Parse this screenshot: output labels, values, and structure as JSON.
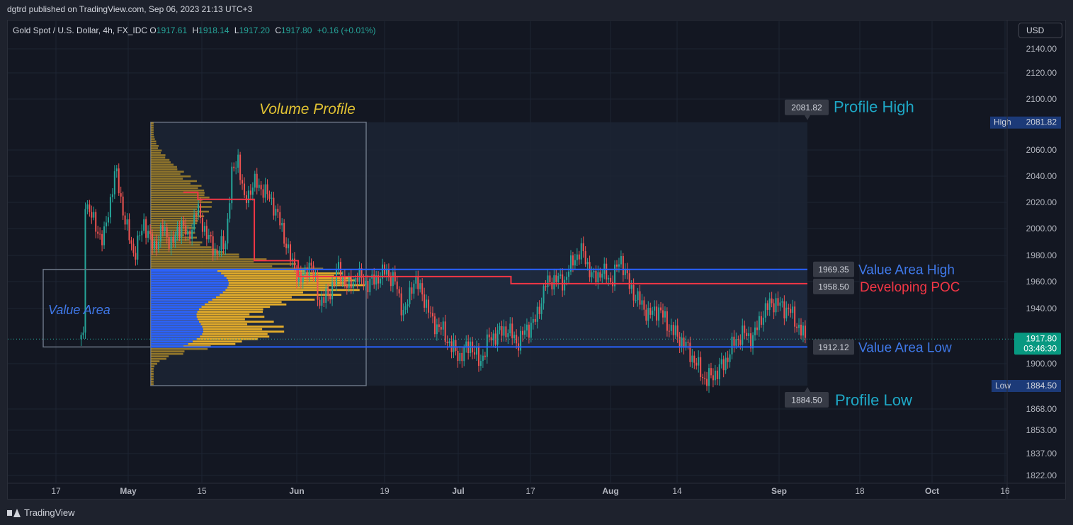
{
  "header": {
    "published": "dgtrd published on TradingView.com, Sep 06, 2023 21:13 UTC+3"
  },
  "legend": {
    "symbol": "Gold Spot / U.S. Dollar, 4h, FX_IDC",
    "o_label": "O",
    "o": "1917.61",
    "h_label": "H",
    "h": "1918.14",
    "l_label": "L",
    "l": "1917.20",
    "c_label": "C",
    "c": "1917.80",
    "change": "+0.16 (+0.01%)"
  },
  "currency": "USD",
  "footer": {
    "brand": "TradingView"
  },
  "colors": {
    "up": "#26a69a",
    "down": "#ef5350",
    "value_area": "#2962ff",
    "poc": "#f23645",
    "profile_in": "#2962ff",
    "profile_out": "#f0b429",
    "accent_text": "#1ea7c5",
    "label_yellow": "#e1c233"
  },
  "chart_data": {
    "type": "candlestick",
    "title": "",
    "y_ticks": [
      "2140.00",
      "2120.00",
      "2100.00",
      "2060.00",
      "2040.00",
      "2020.00",
      "2000.00",
      "1980.00",
      "1960.00",
      "1940.00",
      "1900.00",
      "1868.00",
      "1853.00",
      "1837.00",
      "1822.00"
    ],
    "x_ticks": [
      "17",
      "May",
      "15",
      "Jun",
      "19",
      "Jul",
      "17",
      "Aug",
      "14",
      "Sep",
      "18",
      "Oct",
      "16"
    ],
    "levels": {
      "profile_high": 2081.82,
      "profile_low": 1884.5,
      "value_area_high": 1969.35,
      "developing_poc": 1958.5,
      "value_area_low": 1912.12,
      "last_price": 1917.8
    },
    "level_labels": {
      "profile_high": "2081.82",
      "profile_low": "1884.50",
      "value_area_high": "1969.35",
      "developing_poc": "1958.50",
      "value_area_low": "1912.12"
    },
    "annotations": {
      "volume_profile": "Volume Profile",
      "value_area": "Value Area",
      "profile_high": "Profile High",
      "profile_low": "Profile Low",
      "value_area_high": "Value Area High",
      "developing_poc": "Developing POC",
      "value_area_low": "Value Area Low"
    },
    "scale_tags": {
      "high_label": "High",
      "high_value": "2081.82",
      "low_label": "Low",
      "low_value": "1884.50",
      "last_value": "1917.80",
      "countdown": "03:46:30"
    },
    "price_path": [
      {
        "d": -14,
        "p": 2024
      },
      {
        "d": -11,
        "p": 2005
      },
      {
        "d": -8,
        "p": 1990
      },
      {
        "d": -4,
        "p": 2045
      },
      {
        "d": -1,
        "p": 2005
      },
      {
        "d": 2,
        "p": 1980
      },
      {
        "d": 5,
        "p": 2005
      },
      {
        "d": 8,
        "p": 1985
      },
      {
        "d": 11,
        "p": 2000
      },
      {
        "d": 14,
        "p": 1988
      },
      {
        "d": 17,
        "p": 2005
      },
      {
        "d": 19,
        "p": 1992
      },
      {
        "d": 22,
        "p": 2015
      },
      {
        "d": 25,
        "p": 1995
      },
      {
        "d": 28,
        "p": 1982
      },
      {
        "d": 31,
        "p": 1990
      },
      {
        "d": 33,
        "p": 2040
      },
      {
        "d": 35,
        "p": 2055
      },
      {
        "d": 37,
        "p": 2020
      },
      {
        "d": 40,
        "p": 2035
      },
      {
        "d": 43,
        "p": 2030
      },
      {
        "d": 46,
        "p": 2020
      },
      {
        "d": 49,
        "p": 2000
      },
      {
        "d": 52,
        "p": 1975
      },
      {
        "d": 55,
        "p": 1960
      },
      {
        "d": 58,
        "p": 1975
      },
      {
        "d": 61,
        "p": 1945
      },
      {
        "d": 64,
        "p": 1950
      },
      {
        "d": 67,
        "p": 1970
      },
      {
        "d": 70,
        "p": 1955
      },
      {
        "d": 73,
        "p": 1965
      },
      {
        "d": 76,
        "p": 1958
      },
      {
        "d": 79,
        "p": 1962
      },
      {
        "d": 82,
        "p": 1968
      },
      {
        "d": 85,
        "p": 1960
      },
      {
        "d": 88,
        "p": 1935
      },
      {
        "d": 91,
        "p": 1962
      },
      {
        "d": 94,
        "p": 1950
      },
      {
        "d": 97,
        "p": 1930
      },
      {
        "d": 100,
        "p": 1925
      },
      {
        "d": 103,
        "p": 1912
      },
      {
        "d": 106,
        "p": 1905
      },
      {
        "d": 109,
        "p": 1915
      },
      {
        "d": 112,
        "p": 1900
      },
      {
        "d": 115,
        "p": 1918
      },
      {
        "d": 118,
        "p": 1922
      },
      {
        "d": 121,
        "p": 1925
      },
      {
        "d": 124,
        "p": 1915
      },
      {
        "d": 127,
        "p": 1925
      },
      {
        "d": 130,
        "p": 1932
      },
      {
        "d": 133,
        "p": 1958
      },
      {
        "d": 136,
        "p": 1962
      },
      {
        "d": 139,
        "p": 1960
      },
      {
        "d": 142,
        "p": 1978
      },
      {
        "d": 145,
        "p": 1983
      },
      {
        "d": 148,
        "p": 1962
      },
      {
        "d": 151,
        "p": 1968
      },
      {
        "d": 154,
        "p": 1960
      },
      {
        "d": 157,
        "p": 1978
      },
      {
        "d": 160,
        "p": 1955
      },
      {
        "d": 163,
        "p": 1945
      },
      {
        "d": 166,
        "p": 1935
      },
      {
        "d": 169,
        "p": 1940
      },
      {
        "d": 172,
        "p": 1928
      },
      {
        "d": 175,
        "p": 1920
      },
      {
        "d": 178,
        "p": 1912
      },
      {
        "d": 181,
        "p": 1900
      },
      {
        "d": 184,
        "p": 1888
      },
      {
        "d": 187,
        "p": 1893
      },
      {
        "d": 190,
        "p": 1900
      },
      {
        "d": 193,
        "p": 1915
      },
      {
        "d": 196,
        "p": 1922
      },
      {
        "d": 199,
        "p": 1918
      },
      {
        "d": 202,
        "p": 1935
      },
      {
        "d": 205,
        "p": 1945
      },
      {
        "d": 208,
        "p": 1942
      },
      {
        "d": 211,
        "p": 1938
      },
      {
        "d": 214,
        "p": 1925
      },
      {
        "d": 216,
        "p": 1917.8
      }
    ]
  }
}
